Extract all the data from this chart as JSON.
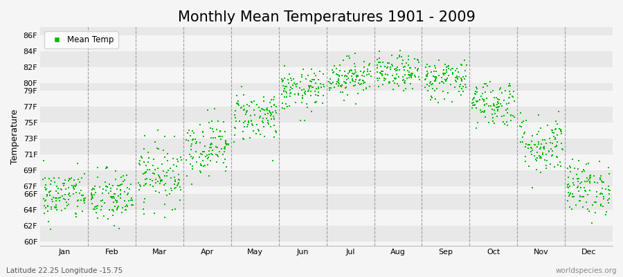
{
  "title": "Monthly Mean Temperatures 1901 - 2009",
  "ylabel": "Temperature",
  "xlabel_bottom_left": "Latitude 22.25 Longitude -15.75",
  "xlabel_bottom_right": "worldspecies.org",
  "ytick_labels": [
    "60F",
    "62F",
    "64F",
    "66F",
    "67F",
    "69F",
    "71F",
    "73F",
    "75F",
    "77F",
    "79F",
    "80F",
    "82F",
    "84F",
    "86F"
  ],
  "ytick_values": [
    60,
    62,
    64,
    66,
    67,
    69,
    71,
    73,
    75,
    77,
    79,
    80,
    82,
    84,
    86
  ],
  "ylim": [
    59.5,
    87.0
  ],
  "months": [
    "Jan",
    "Feb",
    "Mar",
    "Apr",
    "May",
    "Jun",
    "Jul",
    "Aug",
    "Sep",
    "Oct",
    "Nov",
    "Dec"
  ],
  "dot_color": "#00bb00",
  "bg_color": "#f5f5f5",
  "band_dark": "#e8e8e8",
  "band_light": "#f5f5f5",
  "dashed_line_color": "#888888",
  "legend_label": "Mean Temp",
  "title_fontsize": 15,
  "axis_label_fontsize": 9,
  "tick_fontsize": 8,
  "n_years": 109,
  "seed": 42,
  "mean_temps_by_month": [
    65.8,
    65.5,
    68.5,
    72.0,
    75.8,
    79.0,
    80.8,
    81.2,
    80.5,
    77.5,
    72.2,
    66.8
  ],
  "std_temps_by_month": [
    1.6,
    1.8,
    2.0,
    1.8,
    1.6,
    1.3,
    1.2,
    1.1,
    1.3,
    1.5,
    1.9,
    1.7
  ]
}
